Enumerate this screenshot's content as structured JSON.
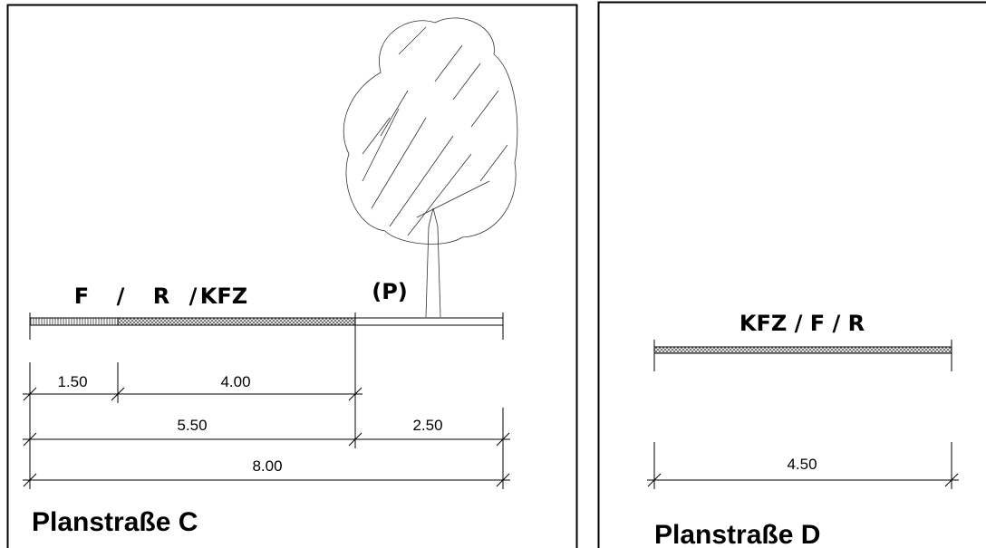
{
  "panels": [
    {
      "title": "Planstraße C",
      "lane_labels": [
        "F",
        "/",
        "R",
        "/",
        "KFZ",
        "(P)"
      ],
      "dimensions": [
        "1.50",
        "4.00",
        "5.50",
        "2.50",
        "8.00"
      ]
    },
    {
      "title": "Planstraße D",
      "lane_labels": [
        "KFZ / F / R"
      ],
      "dimensions": [
        "4.50"
      ]
    }
  ]
}
